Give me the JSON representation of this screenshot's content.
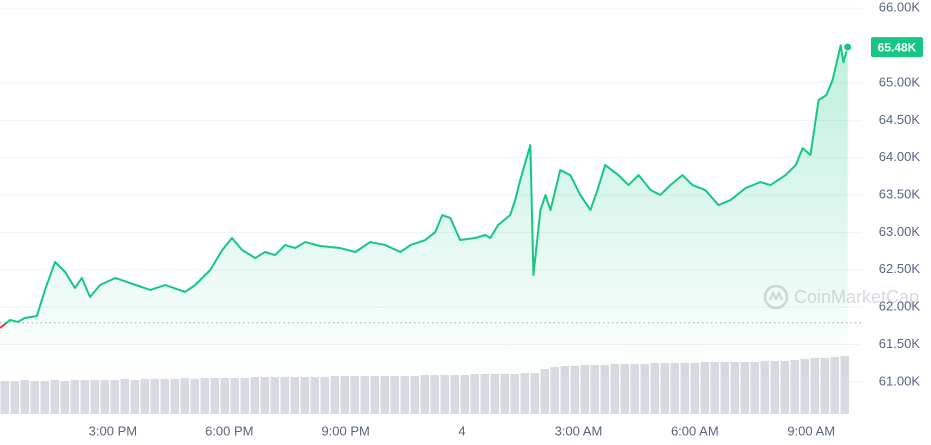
{
  "chart_data": {
    "type": "line",
    "series": [
      {
        "color": "#16c784",
        "down_color": "#ea3943",
        "x": [
          12.09,
          12.35,
          12.55,
          12.73,
          13.04,
          13.25,
          13.51,
          13.77,
          14.02,
          14.2,
          14.41,
          14.67,
          15.06,
          15.44,
          15.96,
          16.35,
          16.86,
          17.12,
          17.51,
          17.82,
          18.07,
          18.33,
          18.67,
          18.92,
          19.18,
          19.44,
          19.7,
          19.96,
          20.34,
          20.86,
          21.25,
          21.63,
          22.02,
          22.41,
          22.67,
          23.05,
          23.31,
          23.49,
          23.7,
          23.95,
          24.34,
          24.6,
          24.73,
          24.93,
          25.24,
          25.37,
          25.5,
          25.76,
          25.84,
          26.02,
          26.15,
          26.28,
          26.53,
          26.79,
          27.05,
          27.31,
          27.49,
          27.69,
          28.03,
          28.29,
          28.55,
          28.86,
          29.11,
          29.37,
          29.68,
          29.94,
          30.27,
          30.61,
          30.92,
          31.31,
          31.69,
          31.95,
          32.34,
          32.6,
          32.78,
          32.98,
          33.19,
          33.39,
          33.55,
          33.76,
          33.83,
          33.94
        ],
        "values": [
          61722,
          61829,
          61802,
          61855,
          61882,
          62230,
          62604,
          62470,
          62256,
          62390,
          62136,
          62296,
          62390,
          62323,
          62230,
          62296,
          62203,
          62296,
          62497,
          62765,
          62925,
          62765,
          62657,
          62738,
          62697,
          62831,
          62791,
          62871,
          62818,
          62791,
          62738,
          62871,
          62831,
          62738,
          62831,
          62898,
          63005,
          63232,
          63192,
          62898,
          62925,
          62966,
          62925,
          63099,
          63232,
          63433,
          63700,
          64168,
          62430,
          63299,
          63500,
          63299,
          63834,
          63767,
          63500,
          63299,
          63567,
          63901,
          63767,
          63633,
          63767,
          63567,
          63500,
          63633,
          63767,
          63633,
          63567,
          63366,
          63433,
          63593,
          63673,
          63633,
          63767,
          63901,
          64128,
          64035,
          64770,
          64837,
          65037,
          65505,
          65278,
          65480
        ]
      }
    ],
    "reference_line": 61790,
    "last_price": {
      "value": 65480,
      "label": "65.48K"
    },
    "volume": [
      33,
      33,
      34,
      33,
      33,
      34,
      33,
      34,
      34,
      34,
      34,
      34,
      35,
      34,
      35,
      35,
      35,
      35,
      36,
      35,
      36,
      36,
      36,
      36,
      36,
      37,
      37,
      37,
      37,
      37,
      37,
      37,
      37,
      38,
      38,
      38,
      38,
      38,
      38,
      38,
      38,
      38,
      39,
      39,
      39,
      39,
      39,
      40,
      40,
      40,
      40,
      40,
      41,
      41,
      45,
      47,
      48,
      48,
      49,
      49,
      49,
      50,
      50,
      50,
      50,
      51,
      51,
      51,
      51,
      51,
      52,
      52,
      52,
      52,
      52,
      52,
      53,
      53,
      53,
      54,
      55,
      56,
      56,
      57,
      58
    ],
    "volume_color": "#d7dae0",
    "volume_lim": [
      0,
      100
    ],
    "xlim": [
      12.09,
      34.0
    ],
    "ylim": [
      60570,
      66110
    ],
    "xticks": [
      {
        "value": 15,
        "label": "3:00 PM"
      },
      {
        "value": 18,
        "label": "6:00 PM"
      },
      {
        "value": 21,
        "label": "9:00 PM"
      },
      {
        "value": 24,
        "label": "4"
      },
      {
        "value": 27,
        "label": "3:00 AM"
      },
      {
        "value": 30,
        "label": "6:00 AM"
      },
      {
        "value": 33,
        "label": "9:00 AM"
      }
    ],
    "yticks": [
      {
        "value": 61000,
        "label": "61.00K"
      },
      {
        "value": 61500,
        "label": "61.50K"
      },
      {
        "value": 62000,
        "label": "62.00K"
      },
      {
        "value": 62500,
        "label": "62.50K"
      },
      {
        "value": 63000,
        "label": "63.00K"
      },
      {
        "value": 63500,
        "label": "63.50K"
      },
      {
        "value": 64000,
        "label": "64.00K"
      },
      {
        "value": 64500,
        "label": "64.50K"
      },
      {
        "value": 65000,
        "label": "65.00K"
      },
      {
        "value": 66000,
        "label": "66.00K"
      }
    ],
    "grid": true,
    "watermark": "CoinMarketCap"
  }
}
